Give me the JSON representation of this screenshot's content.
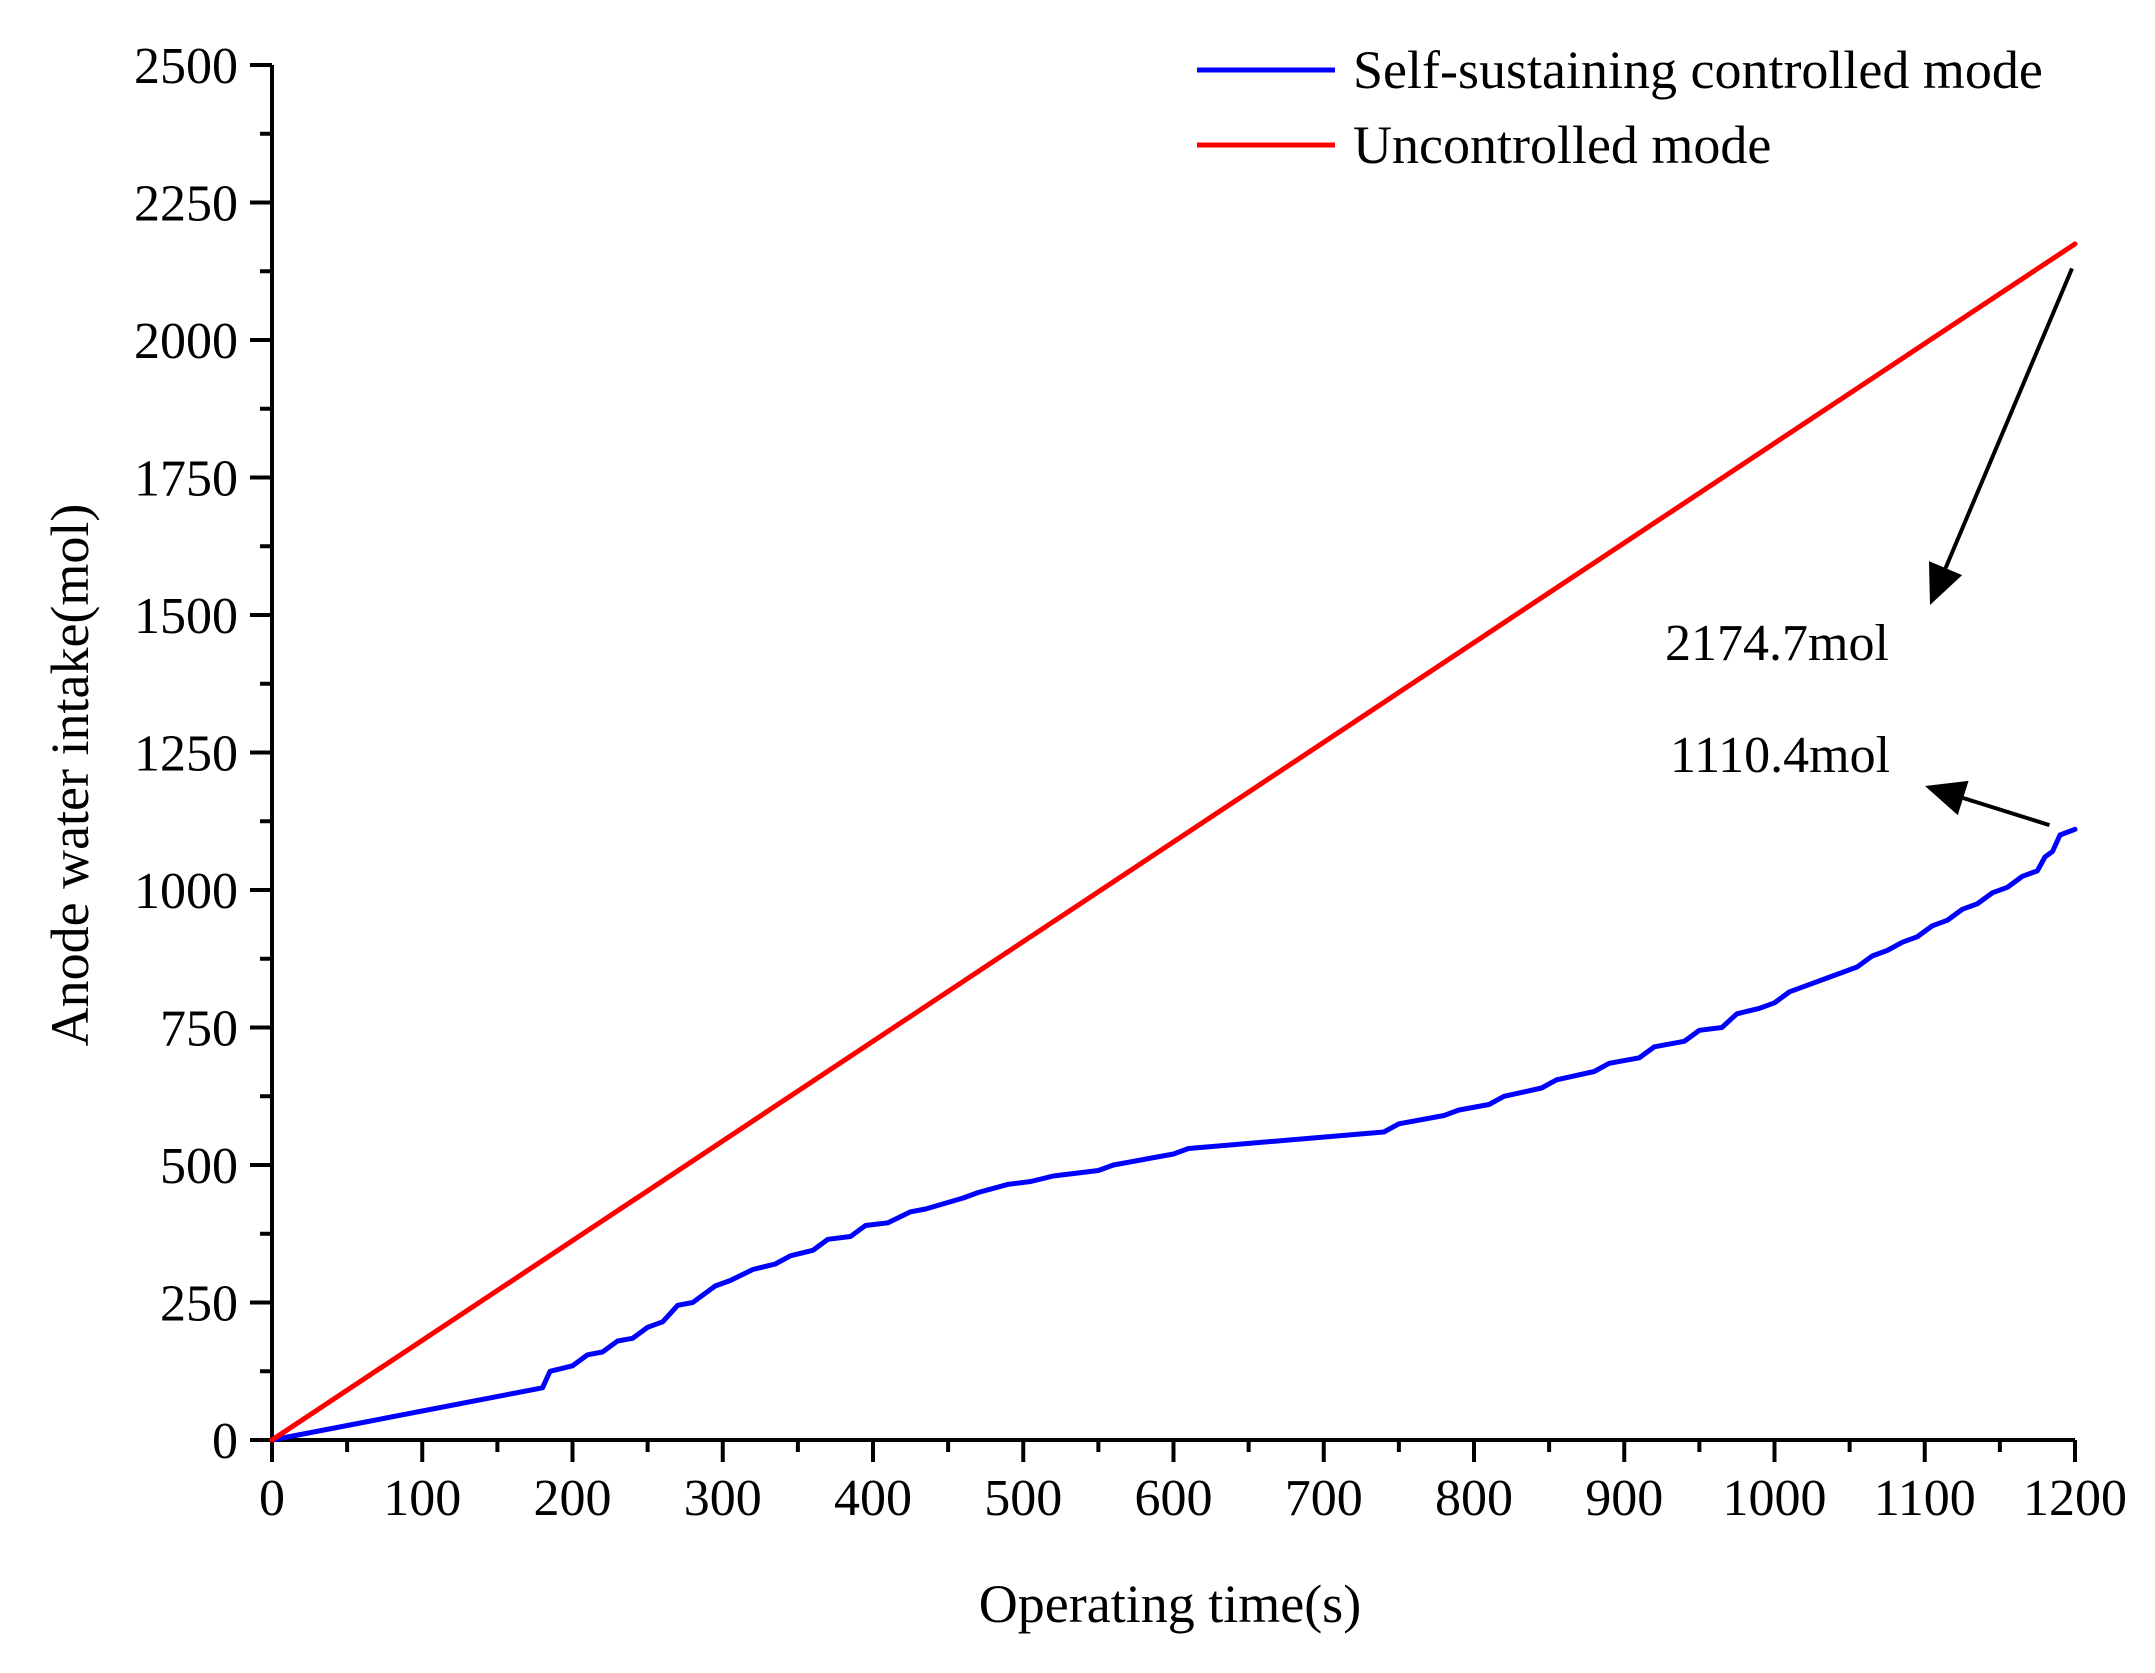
{
  "chart_data": {
    "type": "line",
    "title": "",
    "xlabel": "Operating time(s)",
    "ylabel": "Anode water intake(mol)",
    "xlim": [
      0,
      1200
    ],
    "ylim": [
      0,
      2500
    ],
    "x_ticks": [
      0,
      100,
      200,
      300,
      400,
      500,
      600,
      700,
      800,
      900,
      1000,
      1100,
      1200
    ],
    "y_ticks": [
      0,
      250,
      500,
      750,
      1000,
      1250,
      1500,
      1750,
      2000,
      2250,
      2500
    ],
    "x_tick_labels": [
      "0",
      "100",
      "200",
      "300",
      "400",
      "500",
      "600",
      "700",
      "800",
      "900",
      "1000",
      "1100",
      "1200"
    ],
    "y_tick_labels": [
      "0",
      "250",
      "500",
      "750",
      "1000",
      "1250",
      "1500",
      "1750",
      "2000",
      "2250",
      "2500"
    ],
    "grid": false,
    "legend_position": "top-right",
    "series": [
      {
        "name": "Self-sustaining controlled mode",
        "color": "#0000ff",
        "x": [
          0,
          180,
          185,
          200,
          210,
          220,
          230,
          240,
          250,
          260,
          270,
          280,
          295,
          305,
          320,
          335,
          345,
          360,
          370,
          385,
          395,
          410,
          425,
          435,
          460,
          470,
          490,
          505,
          520,
          550,
          560,
          600,
          610,
          740,
          750,
          780,
          790,
          810,
          820,
          845,
          855,
          880,
          890,
          910,
          920,
          940,
          950,
          965,
          975,
          990,
          1000,
          1010,
          1020,
          1035,
          1045,
          1055,
          1065,
          1075,
          1085,
          1095,
          1105,
          1115,
          1125,
          1135,
          1145,
          1155,
          1165,
          1175,
          1180,
          1185,
          1190,
          1200
        ],
        "y": [
          0,
          95,
          125,
          135,
          155,
          160,
          180,
          185,
          205,
          215,
          245,
          250,
          280,
          290,
          310,
          320,
          335,
          345,
          365,
          370,
          390,
          395,
          415,
          420,
          440,
          450,
          465,
          470,
          480,
          490,
          500,
          520,
          530,
          560,
          575,
          590,
          600,
          610,
          625,
          640,
          655,
          670,
          685,
          695,
          715,
          725,
          745,
          750,
          775,
          785,
          795,
          815,
          825,
          840,
          850,
          860,
          880,
          890,
          905,
          915,
          935,
          945,
          965,
          975,
          995,
          1005,
          1025,
          1035,
          1060,
          1070,
          1100,
          1110.4
        ]
      },
      {
        "name": "Uncontrolled mode",
        "color": "#ff0000",
        "x": [
          0,
          1200
        ],
        "y": [
          0,
          2174.7
        ]
      }
    ],
    "annotations": [
      {
        "text": "2174.7mol",
        "x": 1200,
        "y": 2174.7
      },
      {
        "text": "1110.4mol",
        "x": 1190,
        "y": 1110.4
      }
    ]
  }
}
